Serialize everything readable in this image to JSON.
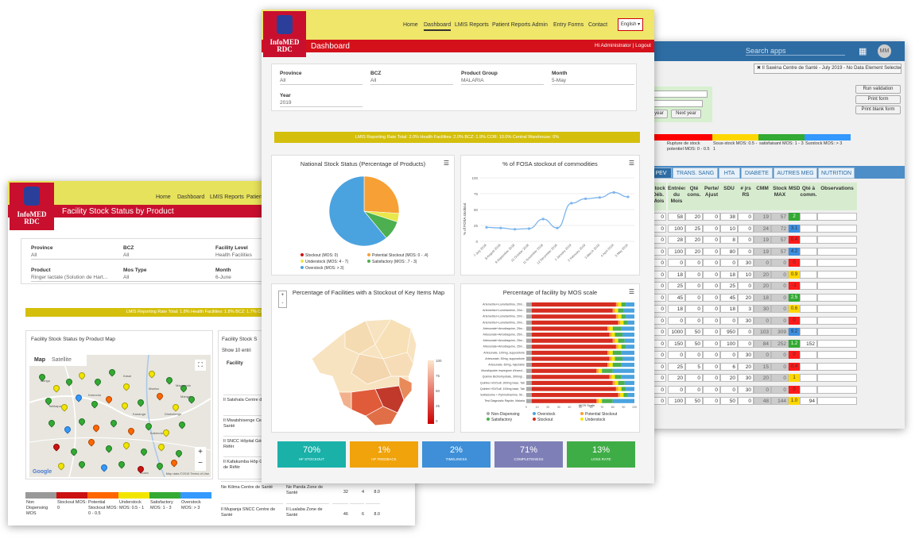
{
  "back_window": {
    "search_placeholder": "Search apps",
    "apps_icon": "apps-grid-icon",
    "avatar": "MM",
    "org_selection": "✖ Il Sawina Centre de Santé - July 2019 - No Data Element Selected",
    "buttons": [
      "Run validation",
      "Print form",
      "Print blank form"
    ],
    "prev_year": "year",
    "next_year": "Next year",
    "legend": [
      {
        "color": "#ff0000",
        "label": "Rupture de stock potentiel MOS: 0 - 0.5"
      },
      {
        "color": "#ffd700",
        "label": "Sous-stock MOS: 0.5 - 1"
      },
      {
        "color": "#33aa33",
        "label": "satisfaisant MOS: 1 - 3"
      },
      {
        "color": "#3399ff",
        "label": "Surstock MOS: > 3"
      }
    ],
    "tabs": [
      "PEV",
      "TRANS. SANG",
      "HTA",
      "DIABETE",
      "AUTRES MEG",
      "NUTRITION"
    ],
    "headers": [
      "Stock Déb. Mois",
      "Entrées du Mois",
      "Qté cons.",
      "Perte/ Ajust",
      "SDU",
      "# jrs RS",
      "CMM",
      "Stock MAX",
      "MSD",
      "Qté à comm.",
      "Observations"
    ],
    "rows": [
      [
        "0",
        "58",
        "20",
        "0",
        "38",
        "0",
        "19",
        "57",
        "2",
        "",
        ""
      ],
      [
        "0",
        "100",
        "25",
        "0",
        "10",
        "0",
        "24",
        "72",
        "3.1",
        "",
        ""
      ],
      [
        "0",
        "28",
        "20",
        "0",
        "8",
        "0",
        "19",
        "57",
        "0.4",
        "",
        ""
      ],
      [
        "0",
        "100",
        "20",
        "0",
        "80",
        "0",
        "19",
        "57",
        "4.2",
        "",
        ""
      ],
      [
        "0",
        "0",
        "0",
        "0",
        "0",
        "30",
        "0",
        "0",
        "0",
        "",
        ""
      ],
      [
        "0",
        "18",
        "0",
        "0",
        "18",
        "10",
        "20",
        "0",
        "0.9",
        "",
        ""
      ],
      [
        "0",
        "25",
        "0",
        "0",
        "25",
        "0",
        "20",
        "0",
        "-1",
        "",
        ""
      ],
      [
        "0",
        "45",
        "0",
        "0",
        "45",
        "20",
        "18",
        "0",
        "2.5",
        "",
        ""
      ],
      [
        "0",
        "18",
        "0",
        "0",
        "18",
        "3",
        "30",
        "0",
        "0.6",
        "",
        ""
      ],
      [
        "0",
        "0",
        "0",
        "0",
        "0",
        "30",
        "0",
        "0",
        "0",
        "",
        ""
      ],
      [
        "0",
        "1000",
        "50",
        "0",
        "950",
        "0",
        "103",
        "309",
        "9.2",
        "",
        ""
      ],
      [
        "0",
        "150",
        "50",
        "0",
        "100",
        "0",
        "84",
        "252",
        "1.2",
        "152",
        ""
      ],
      [
        "0",
        "0",
        "0",
        "0",
        "0",
        "30",
        "0",
        "0",
        "0",
        "",
        ""
      ],
      [
        "0",
        "25",
        "5",
        "0",
        "6",
        "20",
        "15",
        "0",
        "0.4",
        "",
        ""
      ],
      [
        "0",
        "20",
        "0",
        "0",
        "20",
        "30",
        "20",
        "0",
        "1",
        "",
        ""
      ],
      [
        "0",
        "0",
        "0",
        "0",
        "0",
        "30",
        "0",
        "0",
        "0",
        "",
        ""
      ],
      [
        "0",
        "100",
        "50",
        "0",
        "50",
        "0",
        "48",
        "144",
        "1.0",
        "94",
        ""
      ]
    ]
  },
  "left_window": {
    "logo": "InfoMED RDC",
    "nav": [
      "Home",
      "Dashboard",
      "LMIS Reports",
      "Patien"
    ],
    "title": "Facility Stock Status by Product",
    "filters": [
      {
        "label": "Province",
        "value": "All"
      },
      {
        "label": "BCZ",
        "value": "All"
      },
      {
        "label": "Facility Level",
        "value": "Health Facilities"
      },
      {
        "label": "Product",
        "value": "Ringer lactate (Solution de Hart..."
      },
      {
        "label": "Mos Type",
        "value": "All"
      },
      {
        "label": "Month",
        "value": "6-June"
      }
    ],
    "lmis": "LMIS Reporting Rate    Total: 1.8%   Health Facilities: 1.8%   BCZ: 1.7%   COR:",
    "map_title": "Facility Stock Status by Product Map",
    "map_tabs": [
      "Map",
      "Satellite"
    ],
    "map_labels": [
      "Kasai",
      "Gungu",
      "Tshikapa",
      "Kamonia",
      "Mweka",
      "Kananga",
      "Mangai",
      "Kakenda",
      "Dimbelenge",
      "Luiza",
      "Mangando"
    ],
    "google": "Google",
    "map_footer": "Map data ©2019   Terms of Use",
    "table_title": "Facility Stock S",
    "show": "Show",
    "show_n": "10",
    "entries": "entri",
    "facility_hdr": "Facility",
    "facilities": [
      "Il Satshala Centre de Santé",
      "Il Mwatshisenge Centre de Santé",
      "Il SNCC Hôpital Général de Référ",
      "Il Kafakumba Hôp Général de Référ"
    ],
    "bottom_rows": [
      [
        "Ne Kilima Centre de Santé",
        "Ne Panda Zone de Santé",
        "32",
        "4",
        "8.0"
      ],
      [
        "Il Mupanja SNCC Centre de Santé",
        "Il Lualaba Zone de Santé",
        "46",
        "6",
        "8.0"
      ]
    ],
    "legend": [
      {
        "color": "#999999",
        "label": "Non Dispensing MOS"
      },
      {
        "color": "#cc1111",
        "label": "Stockout MOS: 0"
      },
      {
        "color": "#ff6600",
        "label": "Potential Stockout MOS: 0 - 0.5"
      },
      {
        "color": "#f2e600",
        "label": "Understock MOS: 0.5 - 1"
      },
      {
        "color": "#33aa33",
        "label": "Satisfactory MOS: 1 - 3"
      },
      {
        "color": "#3399ff",
        "label": "Overstock MOS: > 3"
      }
    ]
  },
  "main_window": {
    "logo": "InfoMED RDC",
    "nav": [
      "Home",
      "Dashboard",
      "LMIS Reports",
      "Patient Reports",
      "Admin",
      "Entry Forms",
      "Contact"
    ],
    "lang": "English",
    "title": "Dashboard",
    "user": "Hi Administrator | Logout",
    "filters": [
      {
        "label": "Province",
        "value": "All"
      },
      {
        "label": "BCZ",
        "value": "All"
      },
      {
        "label": "Product Group",
        "value": "MALARIA"
      },
      {
        "label": "Month",
        "value": "5-May"
      },
      {
        "label": "Year",
        "value": "2019"
      }
    ],
    "lmis": "LMIS Reporting Rate    Total: 2.0%   Health Facilities: 2.0%   BCZ: 1.9%   COR: 10.0%   Central Warehouse: 0%",
    "pie_title": "National Stock Status (Percentage of Products)",
    "pie_legend": [
      "Stockout (MOS: 0)",
      "Potential Stockout (MOS: 0 - .4)",
      "Understock (MOS: 4 - 7)",
      "Satisfactory (MOS: .7 - 3)",
      "Overstock (MOS: > 3)"
    ],
    "line_title": "% of FOSA stockout of commodities",
    "line_ylabel": "% of FOSA stockout",
    "map_title": "Percentage of Facilities with a Stockout of Key Items Map",
    "scale_labels": [
      "100",
      "75",
      "50",
      "25",
      "0"
    ],
    "bar_title": "Percentage of facility by MOS scale",
    "bar_xlabel": "MOS Scale",
    "bar_legend": [
      "Non-Dispensing",
      "Overstock",
      "Potential Stockout",
      "Satisfactory",
      "Stockout",
      "Understock"
    ],
    "kpis": [
      {
        "value": "70%",
        "label": "HF STOCKOUT",
        "color": "#1ab1a9"
      },
      {
        "value": "1%",
        "label": "HF FEEDBACK",
        "color": "#f0a30a"
      },
      {
        "value": "2%",
        "label": "TIMELINESS",
        "color": "#3e8fd8"
      },
      {
        "value": "71%",
        "label": "COMPLETENESS",
        "color": "#7f7fb8"
      },
      {
        "value": "13%",
        "label": "LOSS RATE",
        "color": "#3fad46"
      }
    ]
  },
  "chart_data": [
    {
      "type": "pie",
      "title": "National Stock Status (Percentage of Products)",
      "categories": [
        "Stockout (MOS: 0)",
        "Potential Stockout (MOS: 0 - .4)",
        "Understock (MOS: 4 - 7)",
        "Satisfactory (MOS: .7 - 3)",
        "Overstock (MOS: > 3)"
      ],
      "values": [
        0,
        26,
        4,
        9,
        61
      ],
      "colors": [
        "#cc1111",
        "#f7a035",
        "#e8e84b",
        "#4caf50",
        "#4aa3df"
      ]
    },
    {
      "type": "line",
      "title": "% of FOSA stockout of commodities",
      "ylabel": "% of FOSA stockout",
      "x": [
        "7 July 2018",
        "8 August 2018",
        "9 September 2018",
        "10 October 2018",
        "11 November 2018",
        "12 December 2018",
        "1 January 2019",
        "2 February 2019",
        "3 March 2019",
        "4 April 2019",
        "5 May 2019"
      ],
      "values": [
        22,
        21,
        19,
        20,
        35,
        21,
        60,
        67,
        69,
        77,
        70
      ],
      "ylim": [
        0,
        100
      ]
    },
    {
      "type": "bar",
      "title": "Percentage of facility by MOS scale",
      "xlabel": "MOS Scale",
      "categories": [
        "Artemether+Lumefantrine, 20m...",
        "Artemether+Lumefantrine, 20m...",
        "Artemether+Lumefantrine, 20m...",
        "Artemether+Lumefantrine, 20m...",
        "Artesunate+Amodiaquine, 25m...",
        "Artesunate+Amodiaquine, 25m...",
        "Artesunate+Amodiaquine, 25m...",
        "Artesunate+Amodiaquine, 25m...",
        "Artesunate, 100mg, suppositoire",
        "Artesunate, 50mg, suppositoire",
        "Artesunate, 60mg, Injectable",
        "Moustiquaire impregnee d'insect...",
        "Quinine Bichlorhydrate, 300mg/...",
        "Quinine HCl/Sulf, 300mg base, Tab",
        "Quinine HCl/Sulf, 100mg base, Tab",
        "Sulfadoxine + Pyrimethamine, 50...",
        "Test Diagnostic Rapide, Malaria"
      ],
      "series": [
        {
          "name": "Non-Dispensing",
          "values": [
            5,
            5,
            5,
            5,
            5,
            5,
            5,
            5,
            5,
            5,
            5,
            5,
            5,
            5,
            5,
            5,
            5
          ]
        },
        {
          "name": "Stockout",
          "values": [
            78,
            75,
            78,
            80,
            70,
            72,
            75,
            78,
            70,
            72,
            70,
            60,
            72,
            75,
            78,
            80,
            60
          ]
        },
        {
          "name": "Potential Stockout",
          "values": [
            2,
            2,
            2,
            2,
            2,
            2,
            2,
            2,
            2,
            2,
            2,
            2,
            2,
            2,
            2,
            2,
            2
          ]
        },
        {
          "name": "Understock",
          "values": [
            3,
            3,
            3,
            3,
            3,
            3,
            3,
            3,
            3,
            3,
            3,
            3,
            3,
            3,
            3,
            3,
            3
          ]
        },
        {
          "name": "Satisfactory",
          "values": [
            4,
            5,
            4,
            4,
            8,
            7,
            6,
            4,
            8,
            7,
            8,
            10,
            6,
            6,
            4,
            4,
            10
          ]
        },
        {
          "name": "Overstock",
          "values": [
            8,
            10,
            8,
            6,
            12,
            11,
            9,
            8,
            12,
            11,
            12,
            20,
            12,
            9,
            8,
            6,
            20
          ]
        }
      ],
      "xlim": [
        0,
        100
      ]
    }
  ]
}
